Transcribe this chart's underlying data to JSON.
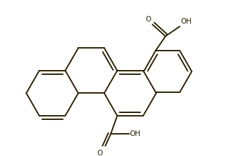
{
  "background_color": "#ffffff",
  "line_color": "#2a2000",
  "line_width": 1.4,
  "figsize": [
    3.27,
    2.25
  ],
  "dpi": 100,
  "xlim": [
    0,
    327
  ],
  "ylim": [
    0,
    225
  ]
}
